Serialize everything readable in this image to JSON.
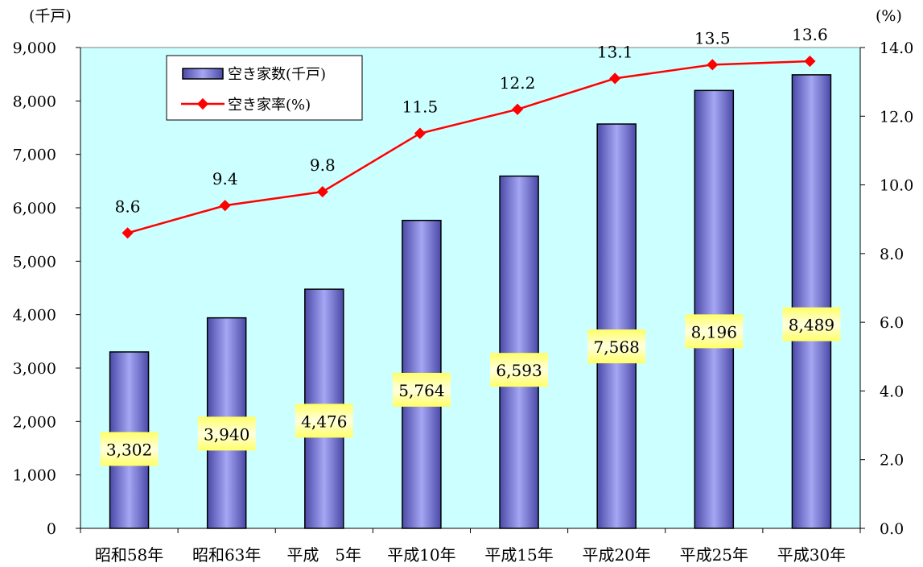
{
  "chart_data": {
    "type": "bar",
    "categories": [
      "昭和58年",
      "昭和63年",
      "平成　5年",
      "平成10年",
      "平成15年",
      "平成20年",
      "平成25年",
      "平成30年"
    ],
    "series": [
      {
        "name": "空き家数(千戸)",
        "type": "bar",
        "axis": "left",
        "values": [
          3302,
          3940,
          4476,
          5764,
          6593,
          7568,
          8196,
          8489
        ],
        "labels": [
          "3,302",
          "3,940",
          "4,476",
          "5,764",
          "6,593",
          "7,568",
          "8,196",
          "8,489"
        ],
        "color": "#8080e0"
      },
      {
        "name": "空き家率(%)",
        "type": "line",
        "axis": "right",
        "values": [
          8.6,
          9.4,
          9.8,
          11.5,
          12.2,
          13.1,
          13.5,
          13.6
        ],
        "labels": [
          "8.6",
          "9.4",
          "9.8",
          "11.5",
          "12.2",
          "13.1",
          "13.5",
          "13.6"
        ],
        "color": "#ff0000"
      }
    ],
    "y_left": {
      "unit": "(千戸)",
      "ylim": [
        0,
        9000
      ],
      "ticks": [
        "0",
        "1,000",
        "2,000",
        "3,000",
        "4,000",
        "5,000",
        "6,000",
        "7,000",
        "8,000",
        "9,000"
      ]
    },
    "y_right": {
      "unit": "(%)",
      "ylim": [
        0,
        14
      ],
      "ticks": [
        "0.0",
        "2.0",
        "4.0",
        "6.0",
        "8.0",
        "10.0",
        "12.0",
        "14.0"
      ]
    },
    "plot_background": "#ccffff",
    "label_background": "#ffff99",
    "grid": false,
    "legend": "top-left"
  }
}
